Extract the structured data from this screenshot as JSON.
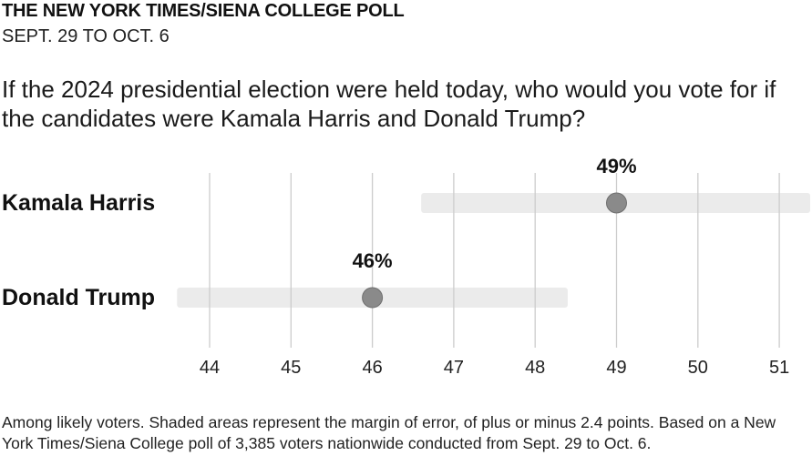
{
  "header": {
    "title": "THE NEW YORK TIMES/SIENA COLLEGE POLL",
    "dates": "SEPT. 29 TO OCT. 6"
  },
  "question": "If the 2024 presidential election were held today, who would you vote for if the candidates were Kamala Harris and Donald Trump?",
  "chart_data": {
    "type": "scatter",
    "x_ticks": [
      44,
      45,
      46,
      47,
      48,
      49,
      50,
      51
    ],
    "xlim": [
      44,
      51
    ],
    "grid": true,
    "margin_of_error": 2.4,
    "series": [
      {
        "name": "Kamala Harris",
        "value": 49,
        "label": "49%",
        "ci": [
          46.6,
          51.4
        ]
      },
      {
        "name": "Donald Trump",
        "value": 46,
        "label": "46%",
        "ci": [
          43.6,
          48.4
        ]
      }
    ],
    "colors": {
      "grid": "#cccccc",
      "band": "#ebebeb",
      "dot": "#8a8a8a",
      "dot_stroke": "#6f6f6f"
    }
  },
  "notes": "Among likely voters. Shaded areas represent the margin of error, of plus or minus 2.4 points. Based on a New York Times/Siena College poll of 3,385 voters nationwide conducted from Sept. 29 to Oct. 6."
}
